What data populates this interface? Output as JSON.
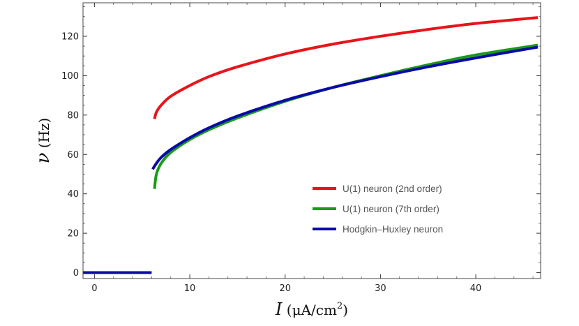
{
  "chart_data": {
    "type": "line",
    "title": "",
    "xlabel": {
      "symbol": "I",
      "unit_prefix": " (μA/cm",
      "unit_exp": "2",
      "unit_suffix": ")"
    },
    "ylabel": {
      "symbol": "ν",
      "unit": " (Hz)"
    },
    "xlim": [
      -1.2,
      46.8
    ],
    "ylim": [
      -3,
      137
    ],
    "x_ticks": [
      0,
      10,
      20,
      30,
      40
    ],
    "y_ticks": [
      0,
      20,
      40,
      60,
      80,
      100,
      120
    ],
    "x_minor_step": 2,
    "y_minor_step": 5,
    "legend_position": "lower-right",
    "series": [
      {
        "name": "U(1) neuron (2nd order)",
        "color": "#e8141a",
        "x": [
          6.3,
          6.5,
          7,
          8,
          10,
          12,
          15,
          20,
          25,
          30,
          35,
          40,
          46.5
        ],
        "y": [
          78,
          81.5,
          85,
          89.5,
          95,
          99.5,
          104.5,
          111,
          116,
          120,
          123.5,
          126.5,
          129.5
        ]
      },
      {
        "name": "U(1) neuron (7th order)",
        "color": "#1a9a1a",
        "x": [
          6.3,
          6.5,
          7,
          8,
          10,
          12,
          15,
          20,
          25,
          30,
          35,
          40,
          46.5
        ],
        "y": [
          42.5,
          50,
          55.5,
          61,
          67.5,
          72.5,
          78.5,
          87,
          94,
          100,
          105.5,
          110.5,
          115.5
        ]
      },
      {
        "name": "Hodgkin–Huxley neuron",
        "color": "#0a0aa8",
        "x": [
          6.1,
          6.5,
          7,
          8,
          10,
          12,
          15,
          20,
          25,
          30,
          35,
          40,
          46.5
        ],
        "y": [
          52.5,
          55.5,
          58.5,
          62.5,
          68.5,
          73.5,
          79.5,
          87.5,
          94,
          99.5,
          104.5,
          109,
          114.5
        ]
      },
      {
        "name": "",
        "color": "#0a0aa8",
        "x": [
          -1.2,
          6.0
        ],
        "y": [
          0,
          0
        ]
      }
    ]
  }
}
